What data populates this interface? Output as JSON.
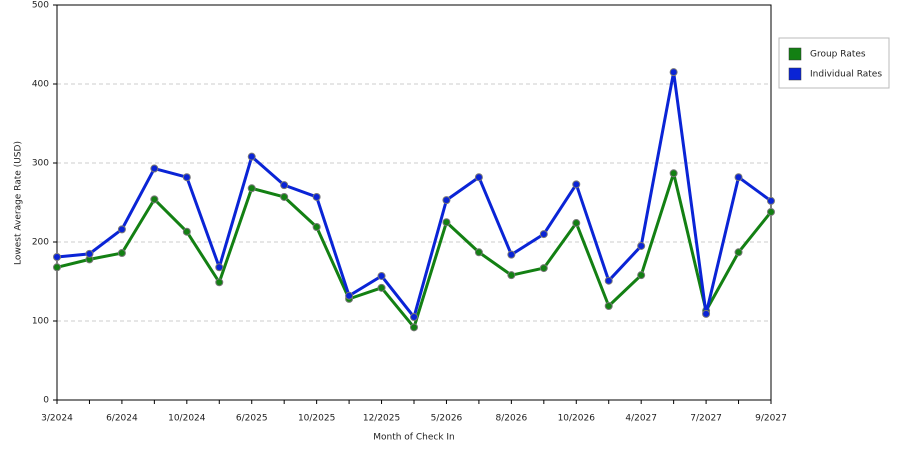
{
  "chart_data": {
    "type": "line",
    "x_label": "Month of Check In",
    "y_label": "Lowest Average Rate (USD)",
    "categories": [
      "3/2024",
      null,
      "6/2024",
      null,
      "10/2024",
      null,
      "6/2025",
      null,
      "10/2025",
      null,
      "12/2025",
      null,
      "5/2026",
      null,
      "8/2026",
      null,
      "10/2026",
      null,
      "4/2027",
      null,
      "7/2027",
      null,
      "9/2027"
    ],
    "series": [
      {
        "name": "Group Rates",
        "color": "#138013",
        "values": [
          168,
          178,
          186,
          254,
          213,
          149,
          268,
          257,
          219,
          128,
          142,
          92,
          225,
          187,
          158,
          167,
          224,
          119,
          158,
          287,
          113,
          187,
          238
        ]
      },
      {
        "name": "Individual Rates",
        "color": "#0a24d6",
        "values": [
          181,
          185,
          216,
          293,
          282,
          168,
          308,
          272,
          257,
          132,
          157,
          105,
          253,
          282,
          184,
          210,
          273,
          151,
          195,
          415,
          109,
          282,
          252
        ]
      }
    ],
    "ylim": [
      0,
      500
    ],
    "yticks": [
      0,
      100,
      200,
      300,
      400,
      500
    ],
    "grid": true,
    "legend": "right"
  }
}
